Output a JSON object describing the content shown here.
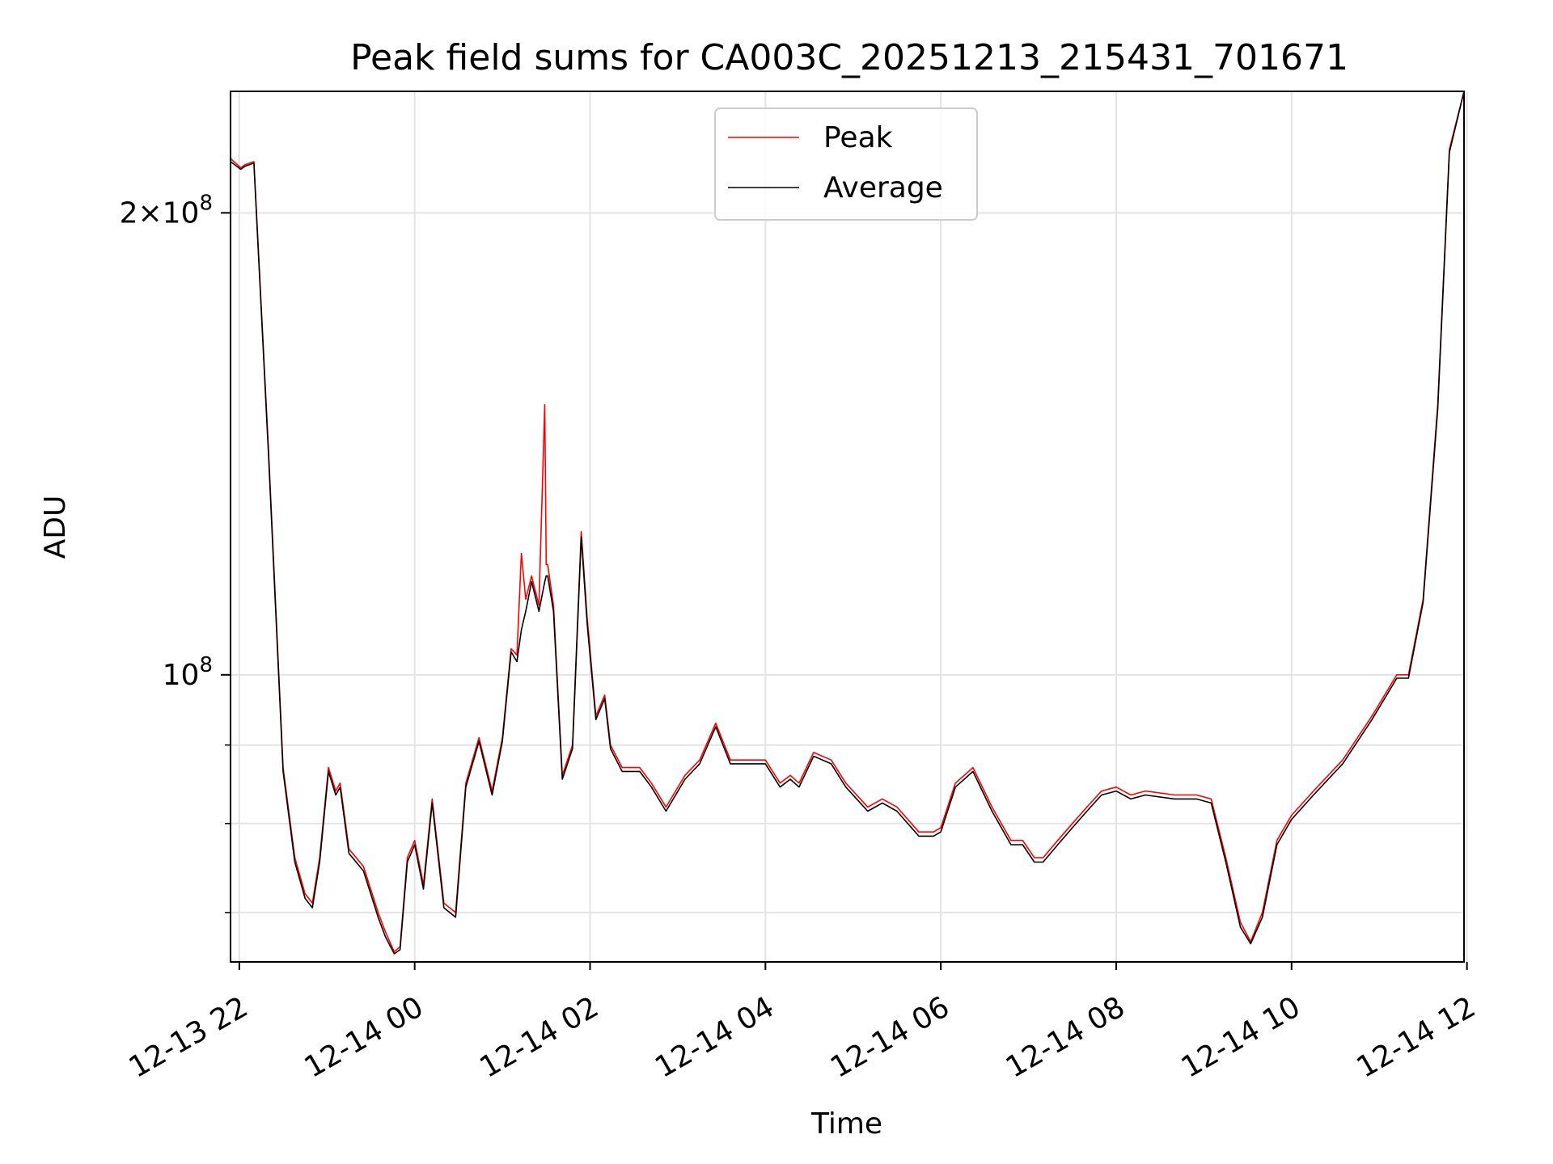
{
  "chart_data": {
    "type": "line",
    "title": "Peak field sums for CA003C_20251213_215431_701671",
    "xlabel": "Time",
    "ylabel": "ADU",
    "yscale": "log",
    "xlim": [
      "2025-12-13 21:54",
      "2025-12-14 11:58"
    ],
    "ylim": [
      65000000,
      240000000
    ],
    "grid": true,
    "legend": "upper center",
    "x_ticks": [
      "12-13 22",
      "12-14 00",
      "12-14 02",
      "12-14 04",
      "12-14 06",
      "12-14 08",
      "12-14 10",
      "12-14 12"
    ],
    "y_ticks": [
      {
        "value": 100000000,
        "label": "10^8"
      },
      {
        "value": 200000000,
        "label": "2×10^8"
      }
    ],
    "colors": {
      "peak": "#ff0000",
      "average": "#000000"
    },
    "series": [
      {
        "name": "Peak",
        "x": [
          "2025-12-13 21:54",
          "2025-12-13 22:01",
          "2025-12-13 22:04",
          "2025-12-13 22:10",
          "2025-12-13 22:20",
          "2025-12-13 22:30",
          "2025-12-13 22:38",
          "2025-12-13 22:45",
          "2025-12-13 22:50",
          "2025-12-13 22:55",
          "2025-12-13 23:01",
          "2025-12-13 23:06",
          "2025-12-13 23:09",
          "2025-12-13 23:15",
          "2025-12-13 23:25",
          "2025-12-13 23:35",
          "2025-12-13 23:40",
          "2025-12-13 23:46",
          "2025-12-13 23:50",
          "2025-12-13 23:55",
          "2025-12-14 00:00",
          "2025-12-14 00:06",
          "2025-12-14 00:12",
          "2025-12-14 00:20",
          "2025-12-14 00:28",
          "2025-12-14 00:35",
          "2025-12-14 00:44",
          "2025-12-14 00:53",
          "2025-12-14 01:00",
          "2025-12-14 01:06",
          "2025-12-14 01:10",
          "2025-12-14 01:13",
          "2025-12-14 01:16",
          "2025-12-14 01:20",
          "2025-12-14 01:25",
          "2025-12-14 01:29",
          "2025-12-14 01:30",
          "2025-12-14 01:31",
          "2025-12-14 01:35",
          "2025-12-14 01:41",
          "2025-12-14 01:48",
          "2025-12-14 01:54",
          "2025-12-14 01:58",
          "2025-12-14 02:04",
          "2025-12-14 02:10",
          "2025-12-14 02:14",
          "2025-12-14 02:22",
          "2025-12-14 02:34",
          "2025-12-14 02:42",
          "2025-12-14 02:52",
          "2025-12-14 03:05",
          "2025-12-14 03:15",
          "2025-12-14 03:26",
          "2025-12-14 03:36",
          "2025-12-14 03:46",
          "2025-12-14 04:00",
          "2025-12-14 04:10",
          "2025-12-14 04:17",
          "2025-12-14 04:23",
          "2025-12-14 04:33",
          "2025-12-14 04:45",
          "2025-12-14 04:55",
          "2025-12-14 05:10",
          "2025-12-14 05:20",
          "2025-12-14 05:30",
          "2025-12-14 05:45",
          "2025-12-14 05:55",
          "2025-12-14 06:00",
          "2025-12-14 06:10",
          "2025-12-14 06:22",
          "2025-12-14 06:35",
          "2025-12-14 06:48",
          "2025-12-14 06:56",
          "2025-12-14 07:04",
          "2025-12-14 07:10",
          "2025-12-14 07:20",
          "2025-12-14 07:30",
          "2025-12-14 07:40",
          "2025-12-14 07:50",
          "2025-12-14 08:00",
          "2025-12-14 08:10",
          "2025-12-14 08:20",
          "2025-12-14 08:40",
          "2025-12-14 08:55",
          "2025-12-14 09:05",
          "2025-12-14 09:15",
          "2025-12-14 09:25",
          "2025-12-14 09:32",
          "2025-12-14 09:40",
          "2025-12-14 09:50",
          "2025-12-14 10:00",
          "2025-12-14 10:15",
          "2025-12-14 10:35",
          "2025-12-14 10:55",
          "2025-12-14 11:12",
          "2025-12-14 11:20",
          "2025-12-14 11:30",
          "2025-12-14 11:40",
          "2025-12-14 11:48",
          "2025-12-14 11:58"
        ],
        "y": [
          217000000,
          214000000,
          215000000,
          216000000,
          140000000,
          87000000,
          76000000,
          72000000,
          71000000,
          76000000,
          87000000,
          84000000,
          85000000,
          77000000,
          75000000,
          70000000,
          68000000,
          66000000,
          66500000,
          76000000,
          78000000,
          73000000,
          83000000,
          71000000,
          70000000,
          85000000,
          91000000,
          84000000,
          91000000,
          104000000,
          103000000,
          120000000,
          112000000,
          116000000,
          111000000,
          150000000,
          118000000,
          118000000,
          111000000,
          86000000,
          90000000,
          124000000,
          109000000,
          94000000,
          97000000,
          90000000,
          87000000,
          87000000,
          85000000,
          82000000,
          86000000,
          88000000,
          93000000,
          88000000,
          88000000,
          88000000,
          85000000,
          86000000,
          85000000,
          89000000,
          88000000,
          85000000,
          82000000,
          83000000,
          82000000,
          79000000,
          79000000,
          79500000,
          85000000,
          87000000,
          82000000,
          78000000,
          78000000,
          76000000,
          76000000,
          78000000,
          80000000,
          82000000,
          84000000,
          84500000,
          83500000,
          84000000,
          83500000,
          83500000,
          83000000,
          76000000,
          69000000,
          67000000,
          70000000,
          78000000,
          81000000,
          84000000,
          88000000,
          94000000,
          100000000,
          100000000,
          112000000,
          150000000,
          220000000,
          240000000
        ]
      },
      {
        "name": "Average",
        "x": [
          "2025-12-13 21:54",
          "2025-12-13 22:01",
          "2025-12-13 22:04",
          "2025-12-13 22:10",
          "2025-12-13 22:20",
          "2025-12-13 22:30",
          "2025-12-13 22:38",
          "2025-12-13 22:45",
          "2025-12-13 22:50",
          "2025-12-13 22:55",
          "2025-12-13 23:01",
          "2025-12-13 23:06",
          "2025-12-13 23:09",
          "2025-12-13 23:15",
          "2025-12-13 23:25",
          "2025-12-13 23:35",
          "2025-12-13 23:40",
          "2025-12-13 23:46",
          "2025-12-13 23:50",
          "2025-12-13 23:55",
          "2025-12-14 00:00",
          "2025-12-14 00:06",
          "2025-12-14 00:12",
          "2025-12-14 00:20",
          "2025-12-14 00:28",
          "2025-12-14 00:35",
          "2025-12-14 00:44",
          "2025-12-14 00:53",
          "2025-12-14 01:00",
          "2025-12-14 01:06",
          "2025-12-14 01:10",
          "2025-12-14 01:13",
          "2025-12-14 01:16",
          "2025-12-14 01:20",
          "2025-12-14 01:25",
          "2025-12-14 01:29",
          "2025-12-14 01:30",
          "2025-12-14 01:31",
          "2025-12-14 01:35",
          "2025-12-14 01:41",
          "2025-12-14 01:48",
          "2025-12-14 01:54",
          "2025-12-14 01:58",
          "2025-12-14 02:04",
          "2025-12-14 02:10",
          "2025-12-14 02:14",
          "2025-12-14 02:22",
          "2025-12-14 02:34",
          "2025-12-14 02:42",
          "2025-12-14 02:52",
          "2025-12-14 03:05",
          "2025-12-14 03:15",
          "2025-12-14 03:26",
          "2025-12-14 03:36",
          "2025-12-14 03:46",
          "2025-12-14 04:00",
          "2025-12-14 04:10",
          "2025-12-14 04:17",
          "2025-12-14 04:23",
          "2025-12-14 04:33",
          "2025-12-14 04:45",
          "2025-12-14 04:55",
          "2025-12-14 05:10",
          "2025-12-14 05:20",
          "2025-12-14 05:30",
          "2025-12-14 05:45",
          "2025-12-14 05:55",
          "2025-12-14 06:00",
          "2025-12-14 06:10",
          "2025-12-14 06:22",
          "2025-12-14 06:35",
          "2025-12-14 06:48",
          "2025-12-14 06:56",
          "2025-12-14 07:04",
          "2025-12-14 07:10",
          "2025-12-14 07:20",
          "2025-12-14 07:30",
          "2025-12-14 07:40",
          "2025-12-14 07:50",
          "2025-12-14 08:00",
          "2025-12-14 08:10",
          "2025-12-14 08:20",
          "2025-12-14 08:40",
          "2025-12-14 08:55",
          "2025-12-14 09:05",
          "2025-12-14 09:15",
          "2025-12-14 09:25",
          "2025-12-14 09:32",
          "2025-12-14 09:40",
          "2025-12-14 09:50",
          "2025-12-14 10:00",
          "2025-12-14 10:15",
          "2025-12-14 10:35",
          "2025-12-14 10:55",
          "2025-12-14 11:12",
          "2025-12-14 11:20",
          "2025-12-14 11:30",
          "2025-12-14 11:40",
          "2025-12-14 11:48",
          "2025-12-14 11:58"
        ],
        "y": [
          216000000,
          213500000,
          214500000,
          215500000,
          139000000,
          86500000,
          75500000,
          71500000,
          70500000,
          75500000,
          86500000,
          83500000,
          84500000,
          76500000,
          74500000,
          69500000,
          67500000,
          65800000,
          66200000,
          75500000,
          77500000,
          72500000,
          82500000,
          70500000,
          69500000,
          84500000,
          90500000,
          83500000,
          90500000,
          103500000,
          102000000,
          107000000,
          110000000,
          115000000,
          110000000,
          115000000,
          116000000,
          116000000,
          110000000,
          85500000,
          89500000,
          123000000,
          108000000,
          93500000,
          96500000,
          89500000,
          86500000,
          86500000,
          84500000,
          81500000,
          85500000,
          87500000,
          92500000,
          87500000,
          87500000,
          87500000,
          84500000,
          85500000,
          84500000,
          88500000,
          87500000,
          84500000,
          81500000,
          82500000,
          81500000,
          78500000,
          78500000,
          79000000,
          84500000,
          86500000,
          81500000,
          77500000,
          77500000,
          75500000,
          75500000,
          77500000,
          79500000,
          81500000,
          83500000,
          84000000,
          83000000,
          83500000,
          83000000,
          83000000,
          82500000,
          75500000,
          68500000,
          66800000,
          69500000,
          77500000,
          80500000,
          83500000,
          87500000,
          93500000,
          99500000,
          99500000,
          111500000,
          149000000,
          219000000,
          240000000
        ]
      }
    ]
  }
}
